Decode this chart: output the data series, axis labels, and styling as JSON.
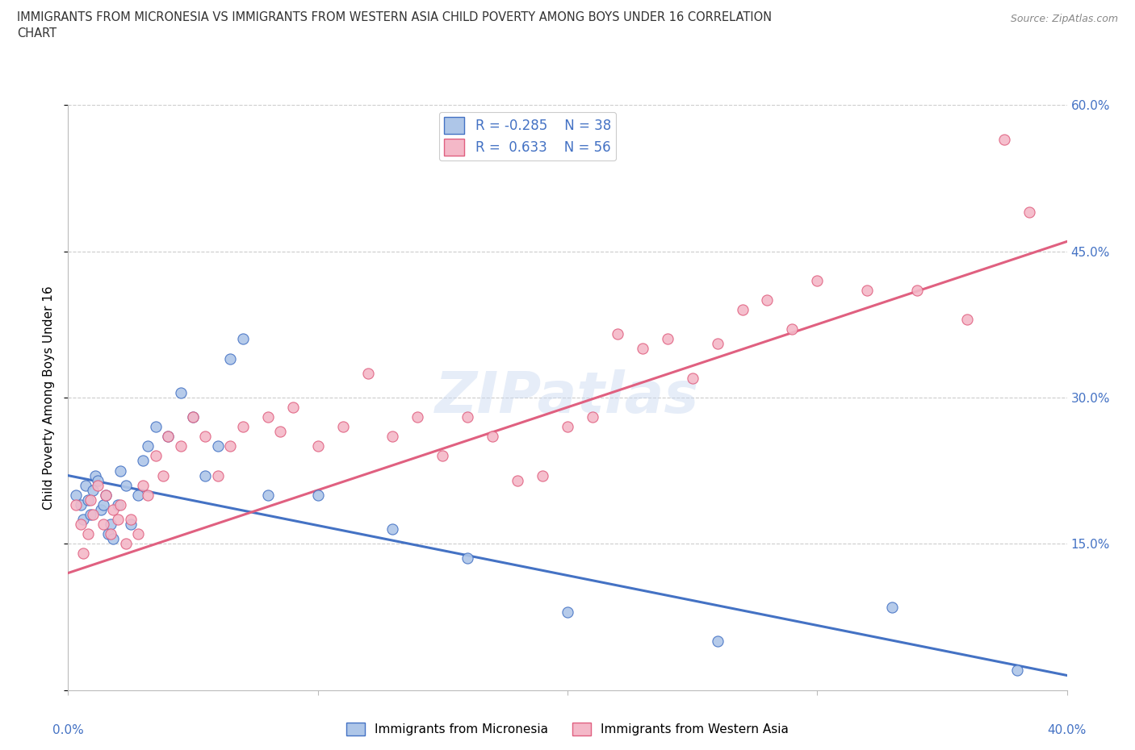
{
  "title_line1": "IMMIGRANTS FROM MICRONESIA VS IMMIGRANTS FROM WESTERN ASIA CHILD POVERTY AMONG BOYS UNDER 16 CORRELATION",
  "title_line2": "CHART",
  "source": "Source: ZipAtlas.com",
  "ylabel": "Child Poverty Among Boys Under 16",
  "xlim": [
    0,
    40
  ],
  "ylim": [
    0,
    60
  ],
  "yticks": [
    0,
    15,
    30,
    45,
    60
  ],
  "ytick_labels": [
    "",
    "15.0%",
    "30.0%",
    "45.0%",
    "60.0%"
  ],
  "watermark": "ZIPatlas",
  "blue_R": -0.285,
  "blue_N": 38,
  "pink_R": 0.633,
  "pink_N": 56,
  "blue_color": "#aec6e8",
  "blue_line_color": "#4472c4",
  "pink_color": "#f4b8c8",
  "pink_line_color": "#e06080",
  "legend_blue_label": "Immigrants from Micronesia",
  "legend_pink_label": "Immigrants from Western Asia",
  "blue_line_x0": 0,
  "blue_line_y0": 22.0,
  "blue_line_x1": 40,
  "blue_line_y1": 1.5,
  "pink_line_x0": 0,
  "pink_line_y0": 12.0,
  "pink_line_x1": 40,
  "pink_line_y1": 46.0,
  "blue_scatter_x": [
    0.3,
    0.5,
    0.6,
    0.7,
    0.8,
    0.9,
    1.0,
    1.1,
    1.2,
    1.3,
    1.4,
    1.5,
    1.6,
    1.7,
    1.8,
    2.0,
    2.1,
    2.3,
    2.5,
    2.8,
    3.0,
    3.2,
    3.5,
    4.0,
    4.5,
    5.0,
    5.5,
    6.0,
    6.5,
    7.0,
    8.0,
    10.0,
    13.0,
    16.0,
    20.0,
    26.0,
    33.0,
    38.0
  ],
  "blue_scatter_y": [
    20.0,
    19.0,
    17.5,
    21.0,
    19.5,
    18.0,
    20.5,
    22.0,
    21.5,
    18.5,
    19.0,
    20.0,
    16.0,
    17.0,
    15.5,
    19.0,
    22.5,
    21.0,
    17.0,
    20.0,
    23.5,
    25.0,
    27.0,
    26.0,
    30.5,
    28.0,
    22.0,
    25.0,
    34.0,
    36.0,
    20.0,
    20.0,
    16.5,
    13.5,
    8.0,
    5.0,
    8.5,
    2.0
  ],
  "pink_scatter_x": [
    0.3,
    0.5,
    0.6,
    0.8,
    0.9,
    1.0,
    1.2,
    1.4,
    1.5,
    1.7,
    1.8,
    2.0,
    2.1,
    2.3,
    2.5,
    2.8,
    3.0,
    3.2,
    3.5,
    3.8,
    4.0,
    4.5,
    5.0,
    5.5,
    6.0,
    6.5,
    7.0,
    8.0,
    8.5,
    9.0,
    10.0,
    11.0,
    12.0,
    13.0,
    14.0,
    15.0,
    16.0,
    17.0,
    18.0,
    19.0,
    20.0,
    21.0,
    22.0,
    23.0,
    24.0,
    25.0,
    26.0,
    27.0,
    28.0,
    29.0,
    30.0,
    32.0,
    34.0,
    36.0,
    37.5,
    38.5
  ],
  "pink_scatter_y": [
    19.0,
    17.0,
    14.0,
    16.0,
    19.5,
    18.0,
    21.0,
    17.0,
    20.0,
    16.0,
    18.5,
    17.5,
    19.0,
    15.0,
    17.5,
    16.0,
    21.0,
    20.0,
    24.0,
    22.0,
    26.0,
    25.0,
    28.0,
    26.0,
    22.0,
    25.0,
    27.0,
    28.0,
    26.5,
    29.0,
    25.0,
    27.0,
    32.5,
    26.0,
    28.0,
    24.0,
    28.0,
    26.0,
    21.5,
    22.0,
    27.0,
    28.0,
    36.5,
    35.0,
    36.0,
    32.0,
    35.5,
    39.0,
    40.0,
    37.0,
    42.0,
    41.0,
    41.0,
    38.0,
    56.5,
    49.0
  ]
}
